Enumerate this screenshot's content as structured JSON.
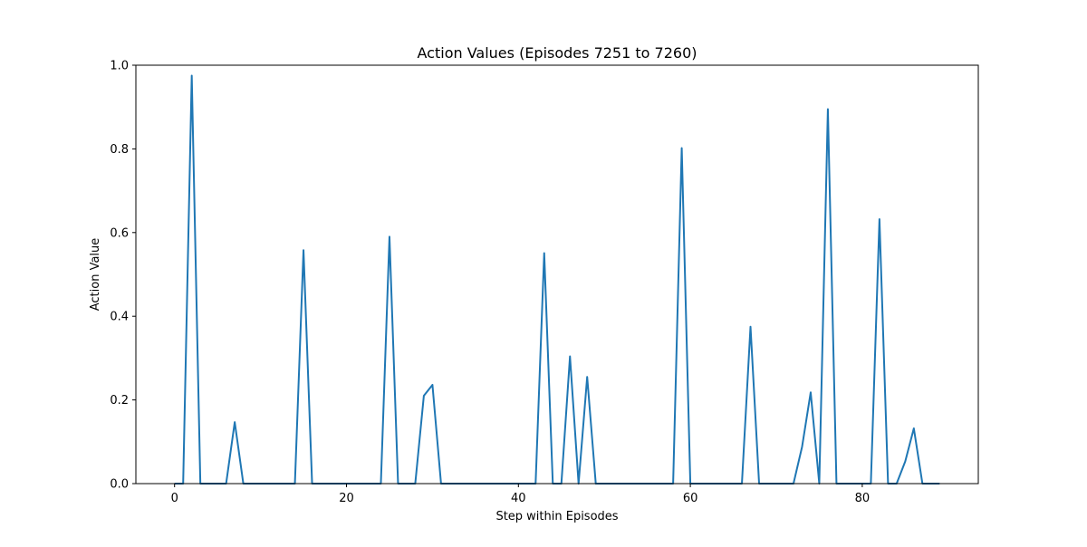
{
  "chart_data": {
    "type": "line",
    "title": "Action Values (Episodes 7251 to 7260)",
    "xlabel": "Step within Episodes",
    "ylabel": "Action Value",
    "xlim": [
      -4.5,
      93.5
    ],
    "ylim": [
      0,
      1.0
    ],
    "xticks": [
      0,
      20,
      40,
      60,
      80
    ],
    "xtick_labels": [
      "0",
      "20",
      "40",
      "60",
      "80"
    ],
    "yticks": [
      0,
      0.2,
      0.4,
      0.6,
      0.8,
      1.0
    ],
    "ytick_labels": [
      "0.0",
      "0.2",
      "0.4",
      "0.6",
      "0.8",
      "1.0"
    ],
    "grid": false,
    "legend": null,
    "series": [
      {
        "color": "#1f77b4",
        "x": [
          0,
          1,
          2,
          3,
          4,
          5,
          6,
          7,
          8,
          9,
          10,
          11,
          12,
          13,
          14,
          15,
          16,
          17,
          18,
          19,
          20,
          21,
          22,
          23,
          24,
          25,
          26,
          27,
          28,
          29,
          30,
          31,
          32,
          33,
          34,
          35,
          36,
          37,
          38,
          39,
          40,
          41,
          42,
          43,
          44,
          45,
          46,
          47,
          48,
          49,
          50,
          51,
          52,
          53,
          54,
          55,
          56,
          57,
          58,
          59,
          60,
          61,
          62,
          63,
          64,
          65,
          66,
          67,
          68,
          69,
          70,
          71,
          72,
          73,
          74,
          75,
          76,
          77,
          78,
          79,
          80,
          81,
          82,
          83,
          84,
          85,
          86,
          87,
          88,
          89
        ],
        "y": [
          0,
          0,
          0.975,
          0,
          0,
          0,
          0,
          0.147,
          0,
          0,
          0,
          0,
          0,
          0,
          0,
          0.558,
          0,
          0,
          0,
          0,
          0,
          0,
          0,
          0,
          0,
          0.59,
          0,
          0,
          0,
          0.21,
          0.236,
          0,
          0,
          0,
          0,
          0,
          0,
          0,
          0,
          0,
          0,
          0,
          0,
          0.551,
          0,
          0,
          0.304,
          0,
          0.255,
          0,
          0,
          0,
          0,
          0,
          0,
          0,
          0,
          0,
          0,
          0.802,
          0,
          0,
          0,
          0,
          0,
          0,
          0,
          0.375,
          0,
          0,
          0,
          0,
          0,
          0.088,
          0.218,
          0,
          0.895,
          0,
          0,
          0,
          0,
          0,
          0.632,
          0,
          0,
          0.053,
          0.132,
          0,
          0,
          0
        ]
      }
    ]
  }
}
